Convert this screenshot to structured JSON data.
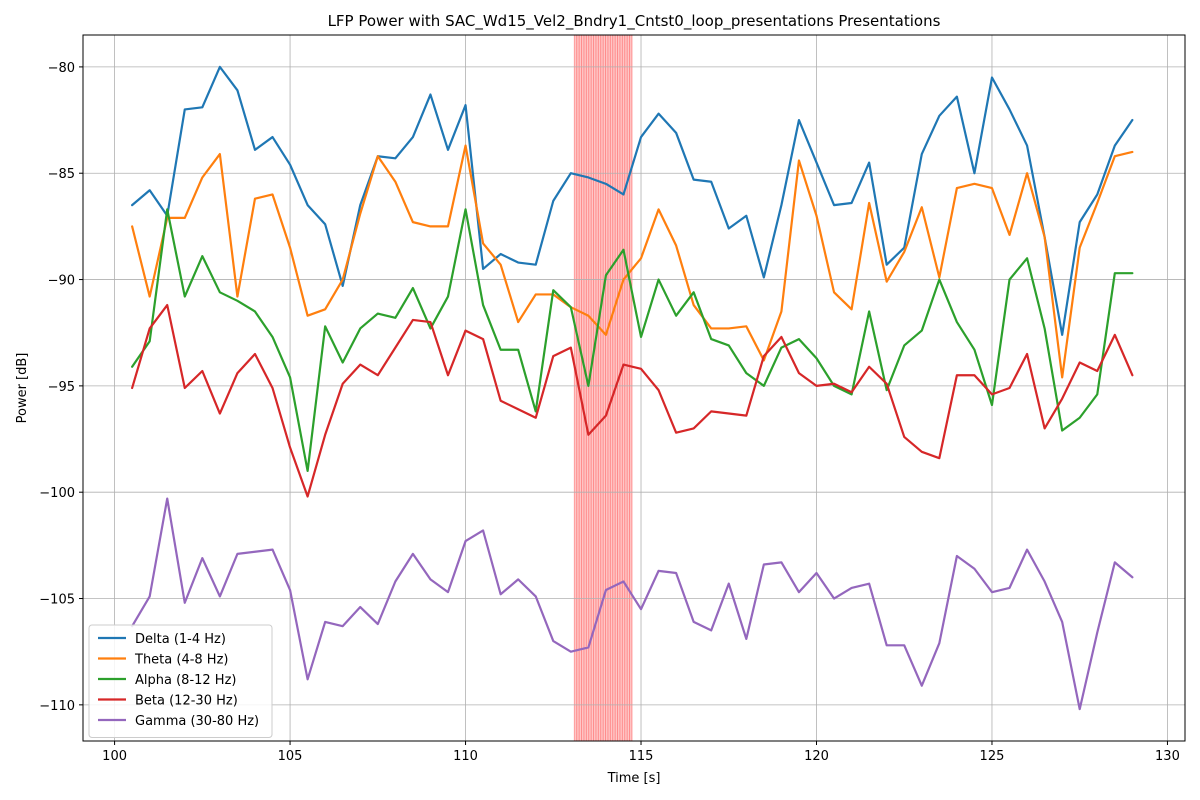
{
  "chart_data": {
    "type": "line",
    "title": "LFP Power with SAC_Wd15_Vel2_Bndry1_Cntst0_loop_presentations Presentations",
    "xlabel": "Time [s]",
    "ylabel": "Power [dB]",
    "xlim": [
      99.1,
      130.5
    ],
    "ylim": [
      -111.7,
      -78.5
    ],
    "xticks": [
      100,
      105,
      110,
      115,
      120,
      125,
      130
    ],
    "yticks": [
      -110,
      -105,
      -100,
      -95,
      -90,
      -85,
      -80
    ],
    "grid": true,
    "legend_position": "lower-left",
    "highlight_band": {
      "x_start": 113.1,
      "x_end": 114.75,
      "color": "#ff0000"
    },
    "x": [
      100.5,
      101,
      101.5,
      102,
      102.5,
      103,
      103.5,
      104,
      104.5,
      105,
      105.5,
      106,
      106.5,
      107,
      107.5,
      108,
      108.5,
      109,
      109.5,
      110,
      110.5,
      111,
      111.5,
      112,
      112.5,
      113,
      113.5,
      114,
      114.5,
      115,
      115.5,
      116,
      116.5,
      117,
      117.5,
      118,
      118.5,
      119,
      119.5,
      120,
      120.5,
      121,
      121.5,
      122,
      122.5,
      123,
      123.5,
      124,
      124.5,
      125,
      125.5,
      126,
      126.5,
      127,
      127.5,
      128,
      128.5,
      129
    ],
    "series": [
      {
        "name": "Delta (1-4 Hz)",
        "color": "#1f77b4",
        "values": [
          -86.5,
          -85.8,
          -87,
          -82,
          -81.9,
          -80,
          -81.1,
          -83.9,
          -83.3,
          -84.6,
          -86.5,
          -87.4,
          -90.3,
          -86.5,
          -84.2,
          -84.3,
          -83.3,
          -81.3,
          -83.9,
          -81.8,
          -89.5,
          -88.8,
          -89.2,
          -89.3,
          -86.3,
          -85,
          -85.2,
          -85.5,
          -86,
          -83.3,
          -82.2,
          -83.1,
          -85.3,
          -85.4,
          -87.6,
          -87,
          -89.9,
          -86.5,
          -82.5,
          -84.5,
          -86.5,
          -86.4,
          -84.5,
          -89.3,
          -88.5,
          -84.1,
          -82.3,
          -81.4,
          -85,
          -80.5,
          -82,
          -83.7,
          -88,
          -92.6,
          -87.3,
          -86,
          -83.7,
          -82.5
        ]
      },
      {
        "name": "Theta (4-8 Hz)",
        "color": "#ff7f0e",
        "values": [
          -87.5,
          -90.8,
          -87.1,
          -87.1,
          -85.2,
          -84.1,
          -90.8,
          -86.2,
          -86,
          -88.5,
          -91.7,
          -91.4,
          -90,
          -86.9,
          -84.2,
          -85.4,
          -87.3,
          -87.5,
          -87.5,
          -83.7,
          -88.3,
          -89.3,
          -92,
          -90.7,
          -90.7,
          -91.3,
          -91.7,
          -92.6,
          -90,
          -89,
          -86.7,
          -88.4,
          -91.2,
          -92.3,
          -92.3,
          -92.2,
          -93.8,
          -91.5,
          -84.4,
          -87,
          -90.6,
          -91.4,
          -86.4,
          -90.1,
          -88.7,
          -86.6,
          -89.9,
          -85.7,
          -85.5,
          -85.7,
          -87.9,
          -85,
          -88,
          -94.6,
          -88.5,
          -86.4,
          -84.2,
          -84
        ]
      },
      {
        "name": "Alpha (8-12 Hz)",
        "color": "#2ca02c",
        "values": [
          -94.1,
          -92.9,
          -86.7,
          -90.8,
          -88.9,
          -90.6,
          -91,
          -91.5,
          -92.7,
          -94.6,
          -99,
          -92.2,
          -93.9,
          -92.3,
          -91.6,
          -91.8,
          -90.4,
          -92.3,
          -90.8,
          -86.7,
          -91.2,
          -93.3,
          -93.3,
          -96.2,
          -90.5,
          -91.3,
          -95,
          -89.8,
          -88.6,
          -92.7,
          -90,
          -91.7,
          -90.6,
          -92.8,
          -93.1,
          -94.4,
          -95,
          -93.2,
          -92.8,
          -93.7,
          -95,
          -95.4,
          -91.5,
          -95.2,
          -93.1,
          -92.4,
          -90,
          -92,
          -93.3,
          -95.9,
          -90,
          -89,
          -92.3,
          -97.1,
          -96.5,
          -95.4,
          -89.7,
          -89.7
        ]
      },
      {
        "name": "Beta (12-30 Hz)",
        "color": "#d62728",
        "values": [
          -95.1,
          -92.3,
          -91.2,
          -95.1,
          -94.3,
          -96.3,
          -94.4,
          -93.5,
          -95.1,
          -97.9,
          -100.2,
          -97.3,
          -94.9,
          -94,
          -94.5,
          -93.2,
          -91.9,
          -92,
          -94.5,
          -92.4,
          -92.8,
          -95.7,
          -96.1,
          -96.5,
          -93.6,
          -93.2,
          -97.3,
          -96.4,
          -94,
          -94.2,
          -95.2,
          -97.2,
          -97,
          -96.2,
          -96.3,
          -96.4,
          -93.6,
          -92.7,
          -94.4,
          -95,
          -94.9,
          -95.3,
          -94.1,
          -94.9,
          -97.4,
          -98.1,
          -98.4,
          -94.5,
          -94.5,
          -95.4,
          -95.1,
          -93.5,
          -97,
          -95.6,
          -93.9,
          -94.3,
          -92.6,
          -94.5
        ]
      },
      {
        "name": "Gamma (30-80 Hz)",
        "color": "#9467bd",
        "values": [
          -106.3,
          -104.9,
          -100.3,
          -105.2,
          -103.1,
          -104.9,
          -102.9,
          -102.8,
          -102.7,
          -104.6,
          -108.8,
          -106.1,
          -106.3,
          -105.4,
          -106.2,
          -104.2,
          -102.9,
          -104.1,
          -104.7,
          -102.3,
          -101.8,
          -104.8,
          -104.1,
          -104.9,
          -107,
          -107.5,
          -107.3,
          -104.6,
          -104.2,
          -105.5,
          -103.7,
          -103.8,
          -106.1,
          -106.5,
          -104.3,
          -106.9,
          -103.4,
          -103.3,
          -104.7,
          -103.8,
          -105,
          -104.5,
          -104.3,
          -107.2,
          -107.2,
          -109.1,
          -107.1,
          -103,
          -103.6,
          -104.7,
          -104.5,
          -102.7,
          -104.2,
          -106.1,
          -110.2,
          -106.6,
          -103.3,
          -104
        ]
      }
    ]
  }
}
